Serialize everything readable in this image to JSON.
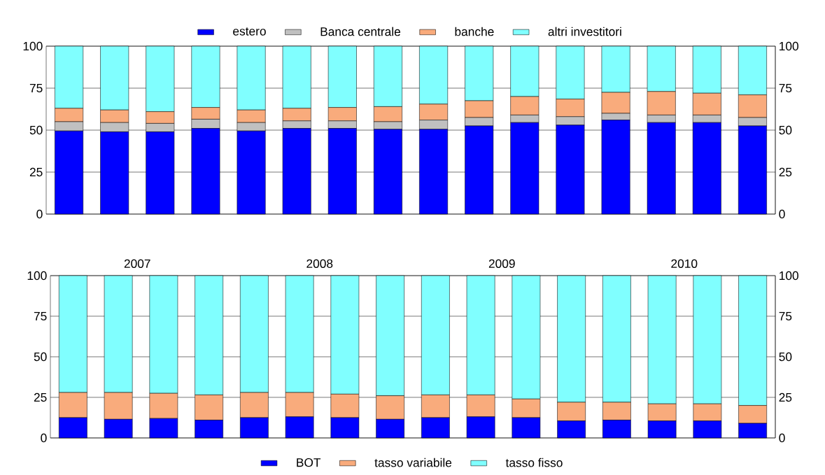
{
  "chart_data": [
    {
      "type": "bar",
      "stacked": true,
      "categories": [
        null,
        null,
        null,
        null,
        null,
        null,
        null,
        null,
        null,
        null,
        null,
        null,
        null,
        null,
        null,
        null
      ],
      "series": [
        {
          "name": "estero",
          "color": "#0000ff",
          "values": [
            49.5,
            49,
            49,
            51,
            49.5,
            51,
            51,
            50.5,
            50.5,
            52.5,
            54.5,
            53,
            56,
            54.5,
            54.5,
            52.5
          ]
        },
        {
          "name": "Banca centrale",
          "color": "#c0c0c0",
          "values": [
            5.5,
            5.5,
            5,
            5.5,
            5,
            4.5,
            4.5,
            4.5,
            5.5,
            5,
            4.5,
            5,
            4,
            4.5,
            4.5,
            5
          ]
        },
        {
          "name": "banche",
          "color": "#f9ab7c",
          "values": [
            8,
            7.5,
            7,
            7,
            7.5,
            7.5,
            8,
            9,
            9.5,
            10,
            11,
            10.5,
            12.5,
            14,
            13,
            13.5
          ]
        },
        {
          "name": "altri investitori",
          "color": "#80ffff",
          "values": [
            37,
            38,
            39,
            36.5,
            38,
            37,
            36.5,
            36,
            34.5,
            32.5,
            30,
            31.5,
            27.5,
            27,
            28,
            29
          ]
        }
      ],
      "ylim": [
        0,
        100
      ],
      "yticks": [
        0,
        25,
        50,
        75,
        100
      ],
      "y2lim": [
        0,
        100
      ],
      "y2ticks": [
        0,
        25,
        50,
        75,
        100
      ],
      "grid": "y",
      "legend": "top",
      "annotations": [
        "2007",
        "2008",
        "2009",
        "2010"
      ]
    },
    {
      "type": "bar",
      "stacked": true,
      "categories": [
        null,
        null,
        null,
        null,
        null,
        null,
        null,
        null,
        null,
        null,
        null,
        null,
        null,
        null,
        null,
        null
      ],
      "series": [
        {
          "name": "BOT",
          "color": "#0000ff",
          "values": [
            12.5,
            11.5,
            12,
            11,
            12.5,
            13,
            12.5,
            11.5,
            12.5,
            13,
            12.5,
            10.5,
            11,
            10.5,
            10.5,
            9
          ]
        },
        {
          "name": "tasso variabile",
          "color": "#f9ab7c",
          "values": [
            15.5,
            16.5,
            15.5,
            15.5,
            15.5,
            15,
            14.5,
            14.5,
            14,
            13.5,
            11.5,
            11.5,
            11,
            10.5,
            10.5,
            11
          ]
        },
        {
          "name": "tasso fisso",
          "color": "#80ffff",
          "values": [
            72,
            72,
            72.5,
            73.5,
            72,
            72,
            73,
            74,
            73.5,
            73.5,
            76,
            78,
            78,
            79,
            79,
            80
          ]
        }
      ],
      "ylim": [
        0,
        100
      ],
      "yticks": [
        0,
        25,
        50,
        75,
        100
      ],
      "y2lim": [
        0,
        100
      ],
      "y2ticks": [
        0,
        25,
        50,
        75,
        100
      ],
      "grid": "y",
      "legend": "bottom"
    }
  ]
}
